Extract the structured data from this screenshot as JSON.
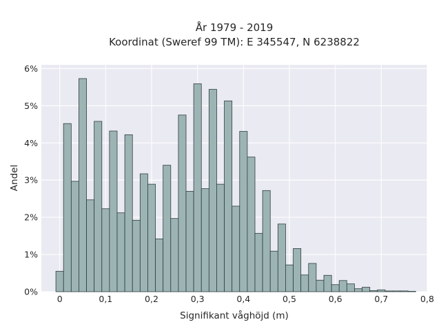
{
  "chart_data": {
    "type": "bar",
    "title": "År 1979 - 2019",
    "subtitle": "Koordinat (Sweref 99 TM): E 345547, N 6238822",
    "xlabel": "Signifikant våghöjd (m)",
    "ylabel": "Andel",
    "xlim": [
      -0.04,
      0.8
    ],
    "ylim": [
      0,
      6.1
    ],
    "x_ticks": [
      0,
      0.1,
      0.2,
      0.3,
      0.4,
      0.5,
      0.6,
      0.7,
      0.8
    ],
    "x_tick_labels": [
      "0",
      "0,1",
      "0,2",
      "0,3",
      "0,4",
      "0,5",
      "0,6",
      "0,7",
      "0,8"
    ],
    "y_ticks": [
      0,
      1,
      2,
      3,
      4,
      5,
      6
    ],
    "y_tick_labels": [
      "0%",
      "1%",
      "2%",
      "3%",
      "4%",
      "5%",
      "6%"
    ],
    "bin_width": 0.016667,
    "bin_start": -0.008333,
    "values": [
      0.55,
      4.52,
      2.97,
      5.73,
      2.47,
      4.58,
      2.23,
      4.32,
      2.12,
      4.22,
      1.92,
      3.17,
      2.89,
      1.42,
      3.4,
      1.97,
      4.75,
      2.7,
      5.59,
      2.77,
      5.44,
      2.89,
      5.13,
      2.3,
      4.31,
      3.62,
      1.57,
      2.72,
      1.09,
      1.82,
      0.72,
      1.16,
      0.45,
      0.76,
      0.31,
      0.44,
      0.19,
      0.3,
      0.21,
      0.08,
      0.12,
      0.03,
      0.05,
      0.02,
      0.02,
      0.02,
      0.01
    ],
    "grid": true,
    "colors": {
      "bar_fill": "#9db4b5",
      "bar_edge": "#2e3d3d",
      "plot_bg": "#eaeaf2",
      "grid": "#ffffff"
    }
  }
}
